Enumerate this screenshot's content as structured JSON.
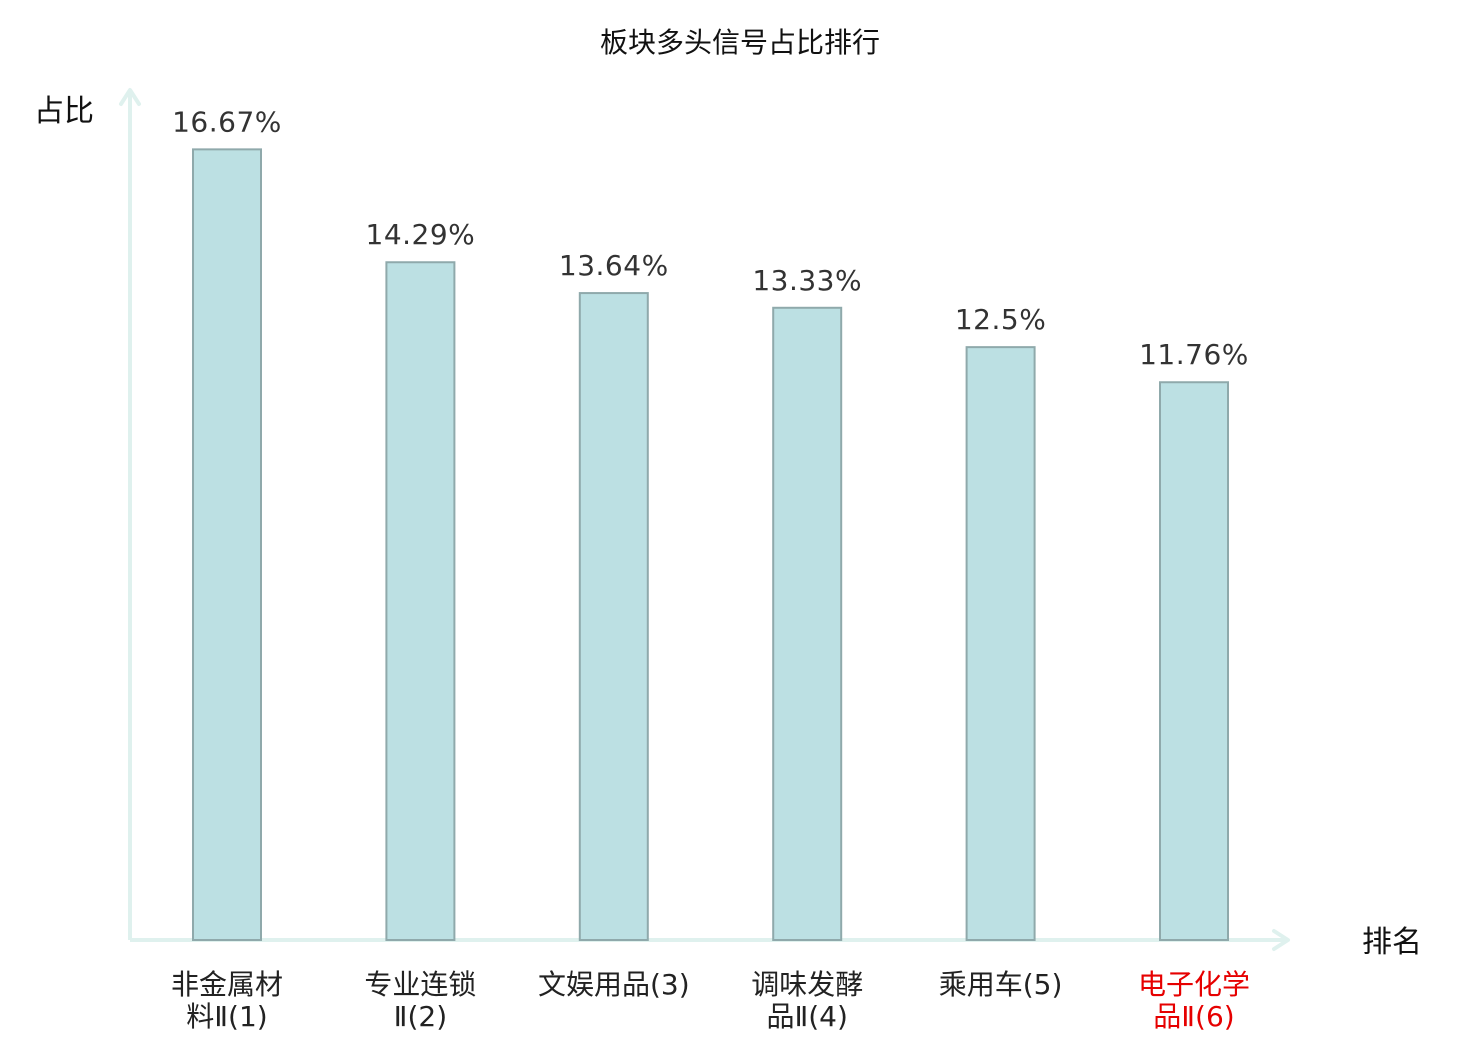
{
  "chart_data": {
    "type": "bar",
    "title": "板块多头信号占比排行",
    "ylabel": "占比",
    "xlabel": "排名",
    "ylim": [
      0,
      17.5
    ],
    "grid": false,
    "categories": [
      [
        "非金属材",
        "料Ⅱ(1)"
      ],
      [
        "专业连锁",
        "Ⅱ(2)"
      ],
      [
        "文娱用品(3)"
      ],
      [
        "调味发酵",
        "品Ⅱ(4)"
      ],
      [
        "乘用车(5)"
      ],
      [
        "电子化学",
        "品Ⅱ(6)"
      ]
    ],
    "values": [
      16.67,
      14.29,
      13.64,
      13.33,
      12.5,
      11.76
    ],
    "value_labels": [
      "16.67%",
      "14.29%",
      "13.64%",
      "13.33%",
      "12.5%",
      "11.76%"
    ],
    "highlight_index": 5,
    "colors": {
      "bar_fill": "#bce0e3",
      "bar_stroke": "#8fa9ab",
      "axis": "#dff1ee",
      "label": "#222222",
      "highlight_label": "#e60000"
    }
  }
}
